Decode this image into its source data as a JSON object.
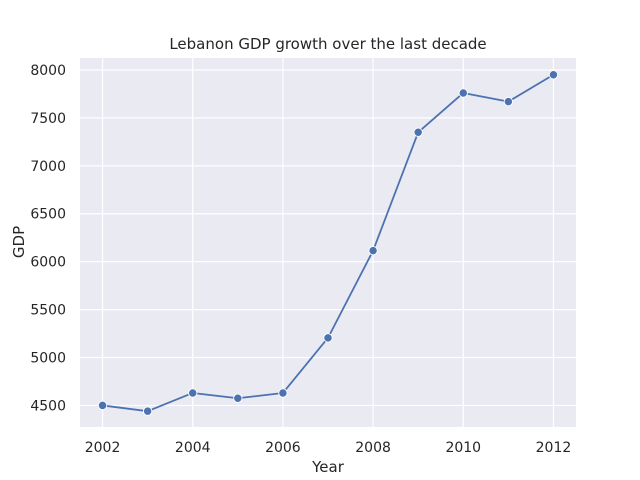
{
  "chart_data": {
    "type": "line",
    "title": "Lebanon GDP growth over the last decade",
    "xlabel": "Year",
    "ylabel": "GDP",
    "x": [
      2002,
      2003,
      2004,
      2005,
      2006,
      2007,
      2008,
      2009,
      2010,
      2011,
      2012
    ],
    "series": [
      {
        "values": [
          4500,
          4440,
          4630,
          4575,
          4630,
          5205,
          6115,
          7350,
          7760,
          7670,
          7950
        ]
      }
    ],
    "xlim": [
      2001.5,
      2012.5
    ],
    "ylim": [
      4275,
      8125
    ],
    "xticks": [
      2002,
      2004,
      2006,
      2008,
      2010,
      2012
    ],
    "yticks": [
      4500,
      5000,
      5500,
      6000,
      6500,
      7000,
      7500,
      8000
    ],
    "grid": true,
    "style": {
      "background": "#eaeaf2",
      "grid_color": "#ffffff",
      "line_color": "#4c72b0"
    }
  }
}
